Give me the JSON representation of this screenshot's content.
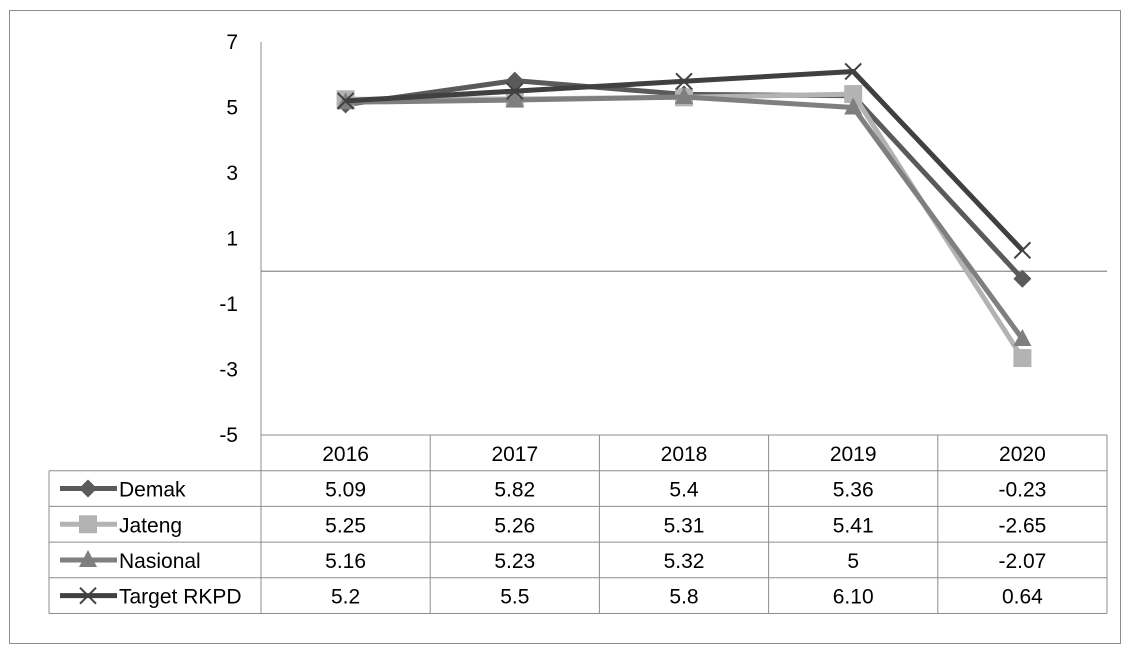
{
  "chart_data": {
    "type": "line",
    "categories": [
      "2016",
      "2017",
      "2018",
      "2019",
      "2020"
    ],
    "ylim": [
      -5,
      7
    ],
    "y_ticks": [
      "7",
      "5",
      "3",
      "1",
      "-1",
      "-3",
      "-5"
    ],
    "legend": "data table below chart",
    "series": [
      {
        "name": "Demak",
        "values": [
          5.09,
          5.82,
          5.4,
          5.36,
          -0.23
        ],
        "labels": [
          "5.09",
          "5.82",
          "5.4",
          "5.36",
          "-0.23"
        ],
        "marker": "diamond",
        "color": "#5a5a5a"
      },
      {
        "name": "Jateng",
        "values": [
          5.25,
          5.26,
          5.31,
          5.41,
          -2.65
        ],
        "labels": [
          "5.25",
          "5.26",
          "5.31",
          "5.41",
          "-2.65"
        ],
        "marker": "square",
        "color": "#b3b3b3"
      },
      {
        "name": "Nasional",
        "values": [
          5.16,
          5.23,
          5.32,
          5,
          -2.07
        ],
        "labels": [
          "5.16",
          "5.23",
          "5.32",
          "5",
          "-2.07"
        ],
        "marker": "triangle",
        "color": "#7f7f7f"
      },
      {
        "name": "Target RKPD",
        "values": [
          5.2,
          5.5,
          5.8,
          6.1,
          0.64
        ],
        "labels": [
          "5.2",
          "5.5",
          "5.8",
          "6.10",
          "0.64"
        ],
        "marker": "x",
        "color": "#404040"
      }
    ]
  }
}
